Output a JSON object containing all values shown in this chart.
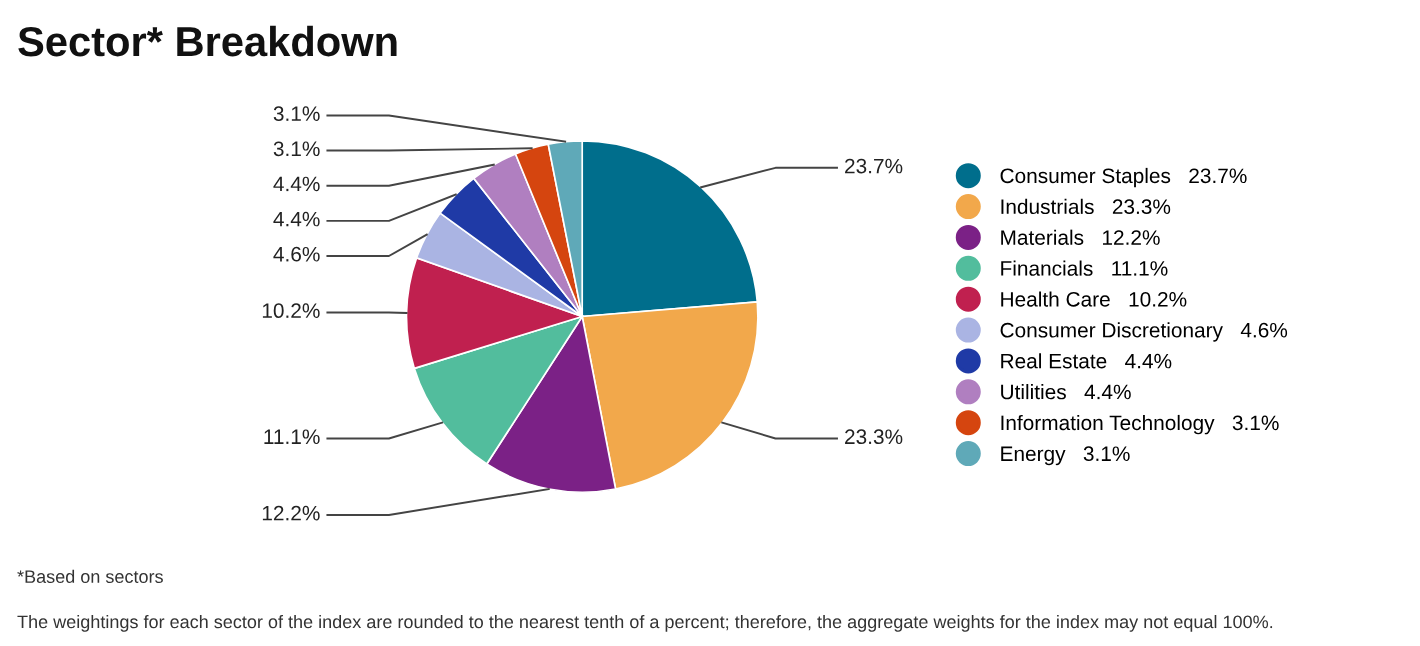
{
  "chart_data": {
    "type": "pie",
    "title": "Sector* Breakdown",
    "categories": [
      "Consumer Staples",
      "Industrials",
      "Materials",
      "Financials",
      "Health Care",
      "Consumer Discretionary",
      "Real Estate",
      "Utilities",
      "Information Technology",
      "Energy"
    ],
    "values": [
      23.7,
      23.3,
      12.2,
      11.1,
      10.2,
      4.6,
      4.4,
      4.4,
      3.1,
      3.1
    ],
    "value_labels": [
      "23.7%",
      "23.3%",
      "12.2%",
      "11.1%",
      "10.2%",
      "4.6%",
      "4.4%",
      "4.4%",
      "3.1%",
      "3.1%"
    ],
    "colors": [
      "#006e8c",
      "#f2a84b",
      "#7b2186",
      "#52bd9d",
      "#c0204f",
      "#aab4e3",
      "#1f3aa6",
      "#b07fc0",
      "#d5450f",
      "#5fa9b8"
    ],
    "legend": "right",
    "annotations": [
      "*Based on sectors",
      "The weightings for each sector of the index are rounded to the nearest tenth of a percent; therefore, the aggregate weights for the index may not equal 100%."
    ]
  }
}
